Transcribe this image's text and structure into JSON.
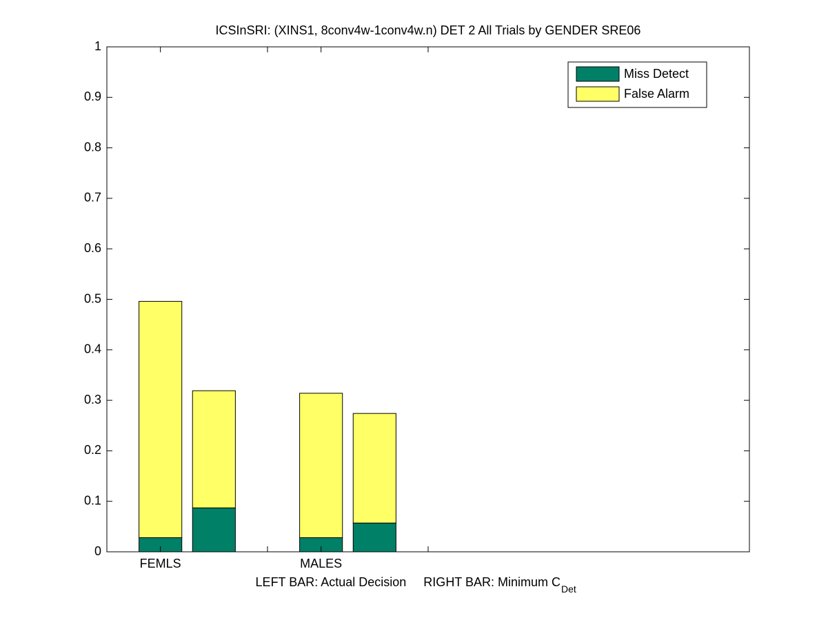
{
  "chart_data": {
    "type": "stacked_bar",
    "title": "ICSInSRI: (XINS1, 8conv4w-1conv4w.n) DET 2 All Trials by GENDER SRE06",
    "xlabel": {
      "text": "LEFT BAR: Actual Decision     RIGHT BAR: Minimum C",
      "subscript": "Det"
    },
    "x": [
      1,
      2,
      4,
      5
    ],
    "series": [
      {
        "name": "Miss Detect",
        "color": "#008066",
        "values": [
          0.028,
          0.087,
          0.028,
          0.057
        ]
      },
      {
        "name": "False Alarm",
        "color": "#ffff66",
        "values": [
          0.468,
          0.232,
          0.286,
          0.217
        ]
      }
    ],
    "xlim": [
      0,
      12
    ],
    "xticks": [
      1,
      3,
      4,
      6
    ],
    "xticklabels": [
      "FEMLS",
      null,
      "MALES",
      null
    ],
    "ylim": [
      0,
      1
    ],
    "yticks": [
      0,
      0.1,
      0.2,
      0.3,
      0.4,
      0.5,
      0.6,
      0.7,
      0.8,
      0.9,
      1
    ],
    "grid": false,
    "legend": "upper right"
  }
}
